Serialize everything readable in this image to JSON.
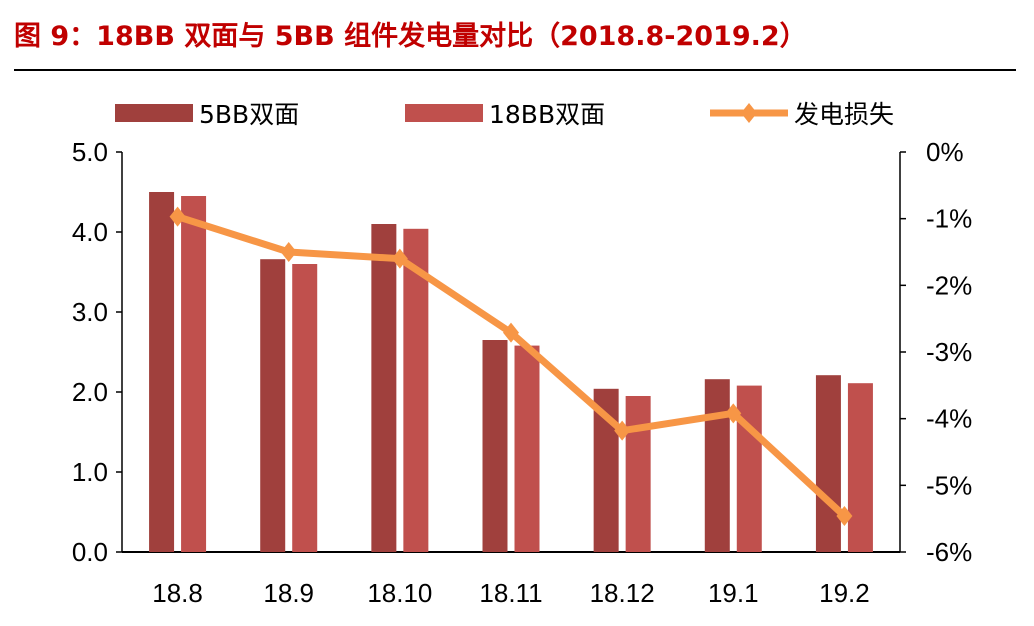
{
  "title": "图 9：18BB 双面与 5BB 组件发电量对比（2018.8-2019.2）",
  "chart_data": {
    "type": "bar+line",
    "categories": [
      "18.8",
      "18.9",
      "18.10",
      "18.11",
      "18.12",
      "19.1",
      "19.2"
    ],
    "series": [
      {
        "name": "5BB双面",
        "type": "bar",
        "axis": "left",
        "color": "#a0403d",
        "values": [
          4.5,
          3.66,
          4.1,
          2.65,
          2.04,
          2.16,
          2.21
        ]
      },
      {
        "name": "18BB双面",
        "type": "bar",
        "axis": "left",
        "color": "#c0504d",
        "values": [
          4.45,
          3.6,
          4.04,
          2.58,
          1.95,
          2.08,
          2.11
        ]
      },
      {
        "name": "发电损失",
        "type": "line",
        "axis": "right",
        "color": "#f79646",
        "marker": "diamond",
        "values": [
          -0.97,
          -1.5,
          -1.6,
          -2.71,
          -4.18,
          -3.92,
          -5.46
        ]
      }
    ],
    "left_axis": {
      "ylim": [
        0,
        5
      ],
      "ticks": [
        "0.0",
        "1.0",
        "2.0",
        "3.0",
        "4.0",
        "5.0"
      ]
    },
    "right_axis": {
      "ylim": [
        -6,
        0
      ],
      "unit": "%",
      "ticks": [
        "-6%",
        "-5%",
        "-4%",
        "-3%",
        "-2%",
        "-1%",
        "0%"
      ]
    },
    "grid": false,
    "legend": "top"
  }
}
